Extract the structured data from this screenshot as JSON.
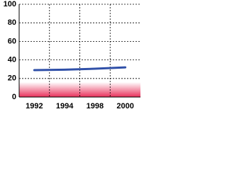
{
  "chart_data": {
    "type": "line",
    "categories": [
      "1992",
      "1994",
      "1998",
      "2000"
    ],
    "series": [
      {
        "color": "#3050a8",
        "values": [
          29,
          29.5,
          30.5,
          32
        ]
      }
    ],
    "ylim": [
      0,
      100
    ],
    "yticks": [
      0,
      20,
      40,
      60,
      80,
      100
    ],
    "grid": true
  }
}
